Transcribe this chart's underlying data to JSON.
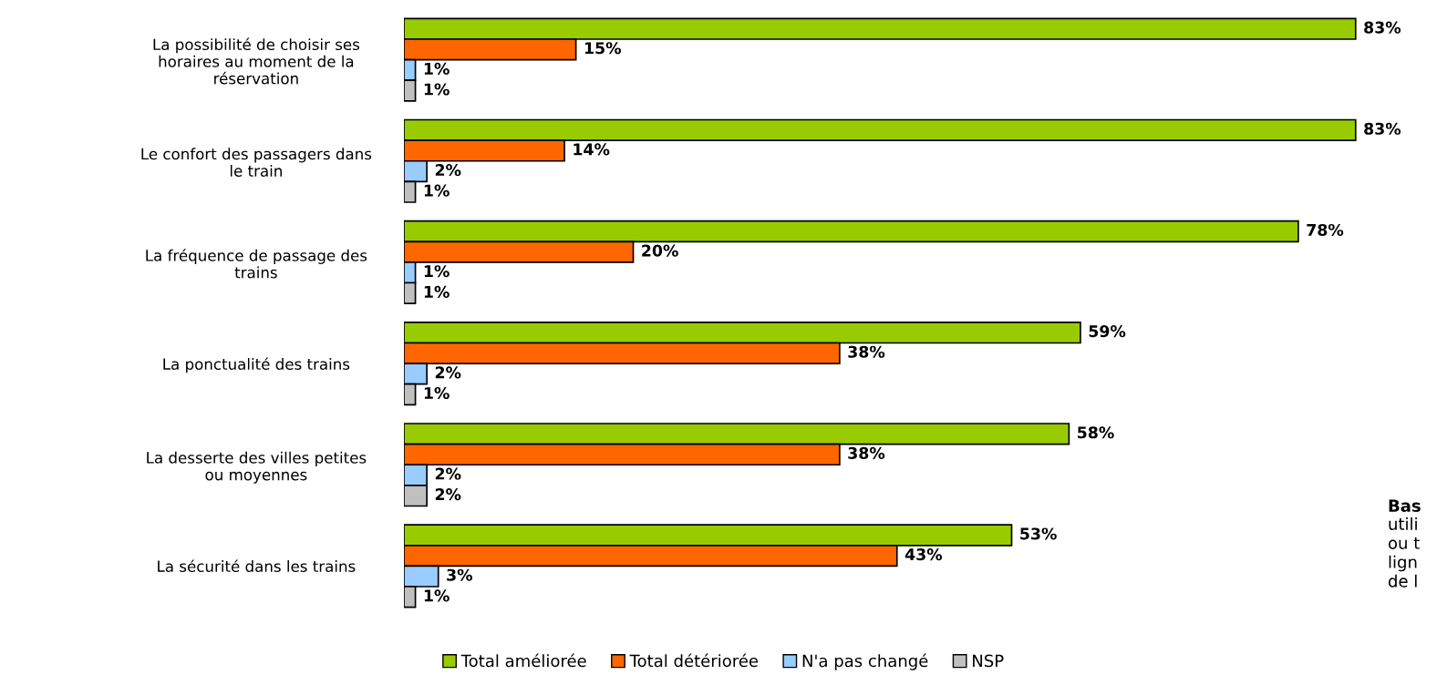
{
  "chart_data": {
    "type": "bar",
    "orientation": "horizontal",
    "legend": "bottom",
    "grid": false,
    "tick_labels": "y",
    "categories": [
      "La possibilité de choisir ses\nhoraires au moment de la\nréservation",
      "Le confort des passagers dans\nle train",
      "La fréquence de passage des\ntrains",
      "La ponctualité des trains",
      "La desserte des villes petites\nou moyennes",
      "La sécurité dans les trains"
    ],
    "series": [
      {
        "name": "Total améliorée",
        "color": "#99cc00",
        "values": [
          83,
          83,
          78,
          59,
          58,
          53
        ],
        "value_labels": [
          "83%",
          "83%",
          "78%",
          "59%",
          "58%",
          "53%"
        ]
      },
      {
        "name": "Total détériorée",
        "color": "#ff6600",
        "values": [
          15,
          14,
          20,
          38,
          38,
          43
        ],
        "value_labels": [
          "15%",
          "14%",
          "20%",
          "38%",
          "38%",
          "43%"
        ]
      },
      {
        "name": "N'a pas changé",
        "color": "#99ccff",
        "values": [
          1,
          2,
          1,
          2,
          2,
          3
        ],
        "value_labels": [
          "1%",
          "2%",
          "1%",
          "2%",
          "2%",
          "3%"
        ]
      },
      {
        "name": "NSP",
        "color": "#c0c0c0",
        "values": [
          1,
          1,
          1,
          1,
          2,
          1
        ],
        "value_labels": [
          "1%",
          "1%",
          "1%",
          "1%",
          "2%",
          "1%"
        ]
      }
    ],
    "annotations": [
      "Bas",
      "utili\nou t\nlign\nde l"
    ]
  }
}
